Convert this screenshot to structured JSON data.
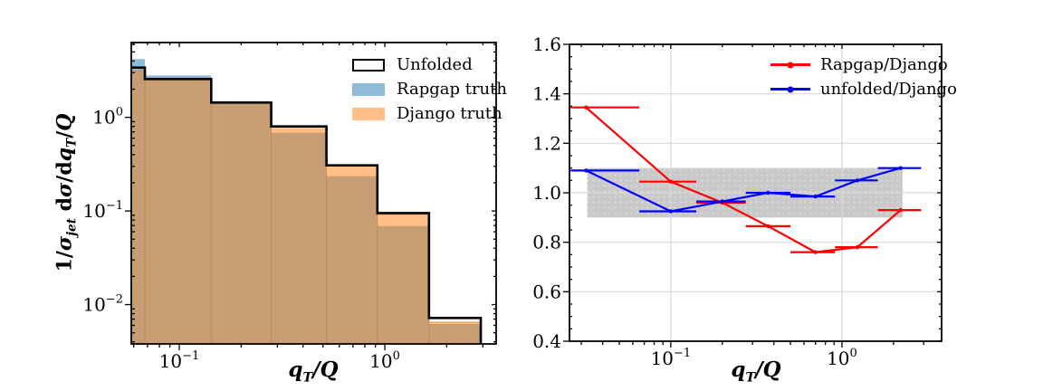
{
  "chart_data": [
    {
      "type": "bar",
      "subtype": "step-histogram",
      "title": "",
      "xlabel": "qT/Q",
      "ylabel": "1/σjet dσ/dqT/Q",
      "xlabel_parts": [
        {
          "t": "q",
          "i": 1
        },
        {
          "t": "T",
          "s": 1,
          "i": 1
        },
        {
          "t": "/Q",
          "i": 1
        }
      ],
      "ylabel_parts": [
        {
          "t": "1/"
        },
        {
          "t": "σ",
          "i": 1
        },
        {
          "t": "jet",
          "s": 1,
          "i": 1
        },
        {
          "t": " d"
        },
        {
          "t": "σ",
          "i": 1
        },
        {
          "t": "/d"
        },
        {
          "t": "q",
          "i": 1
        },
        {
          "t": "T",
          "s": 1,
          "i": 1
        },
        {
          "t": "/"
        },
        {
          "t": "Q",
          "i": 1
        }
      ],
      "xscale": "log",
      "yscale": "log",
      "xlim": [
        0.0584,
        3.48
      ],
      "ylim": [
        0.0038,
        6.3
      ],
      "grid": false,
      "bin_edges": [
        0.03,
        0.068,
        0.143,
        0.28,
        0.52,
        0.92,
        1.64,
        2.93
      ],
      "series": [
        {
          "name": "Unfolded",
          "style": "step-outline",
          "color": "#000000",
          "values": [
            3.4,
            2.57,
            1.44,
            0.8,
            0.307,
            0.095,
            0.0072
          ]
        },
        {
          "name": "Rapgap truth",
          "style": "filled",
          "color": "#1f77b4",
          "opacity": 0.5,
          "values": [
            4.2,
            2.8,
            1.42,
            0.685,
            0.235,
            0.069,
            0.0062
          ]
        },
        {
          "name": "Django truth",
          "style": "filled",
          "color": "#ff7f0e",
          "opacity": 0.5,
          "values": [
            3.15,
            2.55,
            1.43,
            0.79,
            0.304,
            0.092,
            0.0065
          ]
        }
      ],
      "x_ticks": [
        {
          "value": 0.1,
          "base": "10",
          "exp": "−1"
        },
        {
          "value": 1,
          "base": "10",
          "exp": "0"
        }
      ],
      "y_ticks": [
        {
          "value": 1,
          "base": "10",
          "exp": "0"
        },
        {
          "value": 0.1,
          "base": "10",
          "exp": "−1"
        },
        {
          "value": 0.01,
          "base": "10",
          "exp": "−2"
        }
      ],
      "legend_position": "upper right"
    },
    {
      "type": "line",
      "subtype": "ratio-errorbar",
      "title": "",
      "xlabel": "qT/Q",
      "xlabel_parts": [
        {
          "t": "q",
          "i": 1
        },
        {
          "t": "T",
          "s": 1,
          "i": 1
        },
        {
          "t": "/Q",
          "i": 1
        }
      ],
      "ylabel": "",
      "xscale": "log",
      "yscale": "linear",
      "xlim": [
        0.0256,
        3.82
      ],
      "ylim": [
        0.4,
        1.6
      ],
      "grid": true,
      "grid_color": "#d9d9d9",
      "x": [
        0.032,
        0.1,
        0.2,
        0.37,
        0.7,
        1.23,
        2.2
      ],
      "bin_edges": [
        0.026,
        0.0655,
        0.141,
        0.274,
        0.5,
        0.91,
        1.62,
        2.9
      ],
      "series": [
        {
          "name": "Rapgap/Django",
          "color": "#ff0000",
          "values": [
            1.345,
            1.045,
            0.96,
            0.865,
            0.76,
            0.78,
            0.93
          ]
        },
        {
          "name": "unfolded/Django",
          "color": "#0000ff",
          "values": [
            1.09,
            0.925,
            0.965,
            1.0,
            0.985,
            1.05,
            1.1
          ]
        }
      ],
      "band": {
        "x": [
          0.0325,
          2.26
        ],
        "y": [
          0.9,
          1.1
        ],
        "color": "#c9c9c9"
      },
      "x_ticks": [
        {
          "value": 0.1,
          "base": "10",
          "exp": "−1"
        },
        {
          "value": 1,
          "base": "10",
          "exp": "0"
        }
      ],
      "y_ticks": [
        {
          "value": 0.4,
          "label": "0.4"
        },
        {
          "value": 0.6,
          "label": "0.6"
        },
        {
          "value": 0.8,
          "label": "0.8"
        },
        {
          "value": 1.0,
          "label": "1.0"
        },
        {
          "value": 1.2,
          "label": "1.2"
        },
        {
          "value": 1.4,
          "label": "1.4"
        },
        {
          "value": 1.6,
          "label": "1.6"
        }
      ],
      "legend_position": "upper right"
    }
  ]
}
